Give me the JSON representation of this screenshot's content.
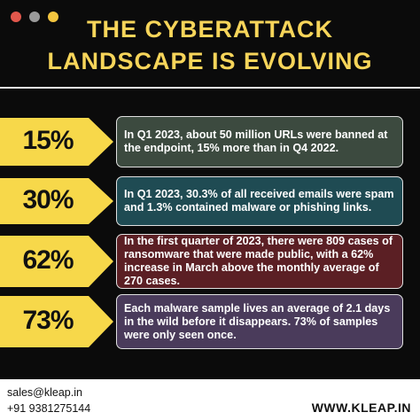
{
  "header": {
    "title_lines": [
      "THE CYBERATTACK",
      "LANDSCAPE IS EVOLVING"
    ]
  },
  "items": [
    {
      "percent": "15%",
      "text": "In Q1 2023, about 50 million URLs were banned at the endpoint, 15% more than in Q4 2022."
    },
    {
      "percent": "30%",
      "text": "In Q1 2023, 30.3% of all received emails were spam and 1.3% contained malware or phishing links."
    },
    {
      "percent": "62%",
      "text": "In the first quarter of 2023, there were 809 cases of ransomware that were made public, with a 62% increase in March above the monthly average of 270 cases."
    },
    {
      "percent": "73%",
      "text": "Each malware sample lives an average of 2.1 days in the wild before it disappears. 73% of samples were only seen once."
    }
  ],
  "footer": {
    "email": "sales@kleap.in",
    "phone": "+91 9381275144",
    "website": "WWW.KLEAP.IN"
  }
}
